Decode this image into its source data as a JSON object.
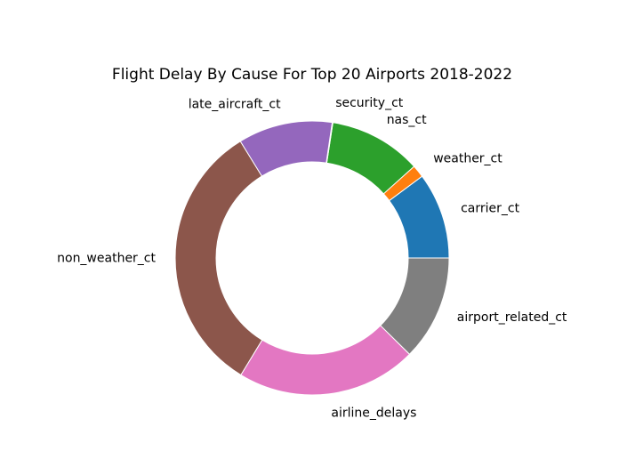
{
  "chart_data": {
    "type": "pie",
    "variant": "donut",
    "title": "Flight Delay By Cause For Top 20 Airports 2018-2022",
    "start_angle_deg": 0,
    "direction": "counterclockwise",
    "legend": "none",
    "slices": [
      {
        "label": "carrier_ct",
        "share": 0.0873,
        "color": "#1f77b4"
      },
      {
        "label": "weather_ct",
        "share": 0.0127,
        "color": "#ff7f0e"
      },
      {
        "label": "nas_ct",
        "share": 0.0938,
        "color": "#2ca02c"
      },
      {
        "label": "security_ct",
        "share": 0.0007,
        "color": "#d62728"
      },
      {
        "label": "late_aircraft_ct",
        "share": 0.0955,
        "color": "#9467bd"
      },
      {
        "label": "non_weather_ct",
        "share": 0.279,
        "color": "#8c564b"
      },
      {
        "label": "airline_delays",
        "share": 0.1828,
        "color": "#e377c2"
      },
      {
        "label": "airport_related_ct",
        "share": 0.1065,
        "color": "#7f7f7f"
      }
    ]
  }
}
